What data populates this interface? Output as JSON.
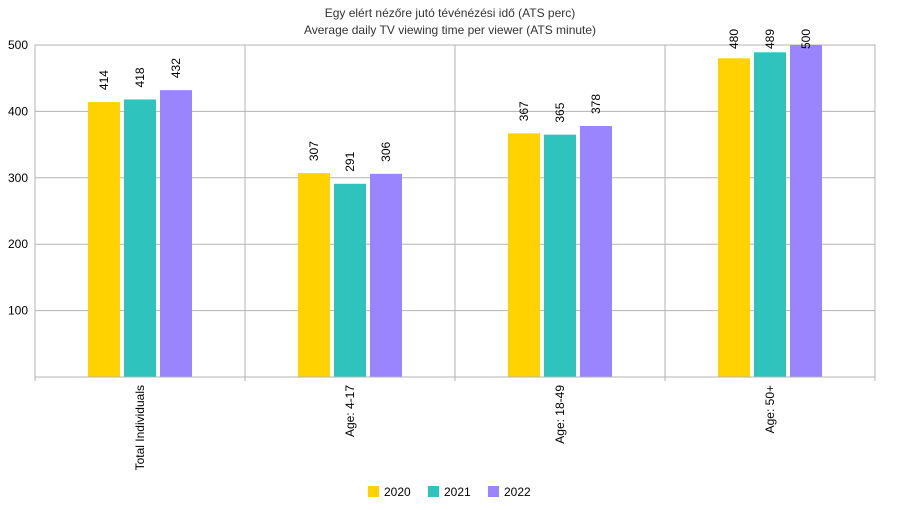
{
  "chart_data": {
    "type": "bar",
    "title": "Egy elért nézőre jutó tévénézési idő (ATS perc)",
    "subtitle": "Average daily TV viewing time per viewer (ATS minute)",
    "categories": [
      "Total Individuals",
      "Age: 4-17",
      "Age: 18-49",
      "Age: 50+"
    ],
    "series": [
      {
        "name": "2020",
        "color": "#ffd200",
        "values": [
          414,
          307,
          367,
          480
        ]
      },
      {
        "name": "2021",
        "color": "#2ec4bd",
        "values": [
          418,
          291,
          365,
          489
        ]
      },
      {
        "name": "2022",
        "color": "#9b85ff",
        "values": [
          432,
          306,
          378,
          500
        ]
      }
    ],
    "ylim": [
      0,
      500
    ],
    "yticks": [
      "100",
      "200",
      "300",
      "400",
      "500"
    ],
    "grid": true,
    "legend_position": "bottom"
  }
}
